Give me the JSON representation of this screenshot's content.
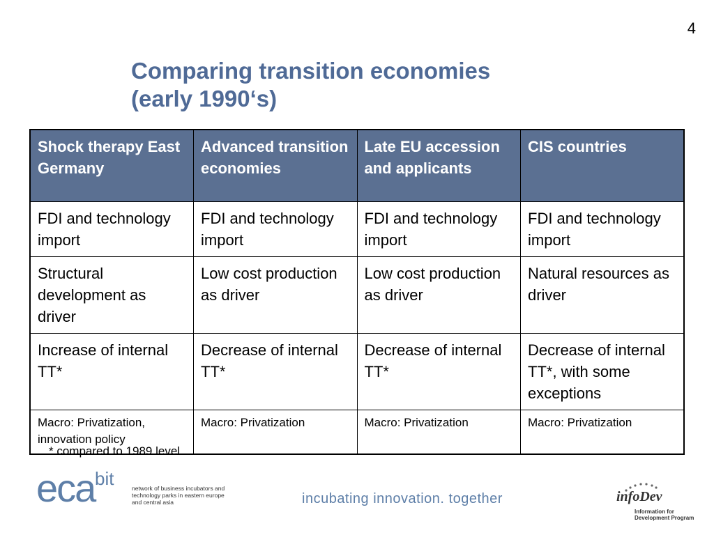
{
  "page_number": "4",
  "title": {
    "line1": "Comparing transition economies",
    "line2": "(early 1990‘s)"
  },
  "table": {
    "headers": [
      "Shock therapy East Germany",
      "Advanced transition economies",
      "Late EU accession and applicants",
      "CIS countries"
    ],
    "rows": [
      [
        "FDI and technology import",
        "FDI and technology import",
        "FDI and technology import",
        "FDI and technology import"
      ],
      [
        "Structural development as driver",
        "Low cost production as driver",
        "Low cost production as driver",
        "Natural resources as driver"
      ],
      [
        "Increase of internal TT*",
        "Decrease of internal TT*",
        "Decrease of internal TT*",
        "Decrease of internal TT*, with some exceptions"
      ],
      [
        "Macro: Privatization, innovation policy",
        "Macro: Privatization",
        "Macro: Privatization",
        "Macro: Privatization"
      ]
    ]
  },
  "footnote": "* compared to 1989 level",
  "footer": {
    "eca_logo": {
      "eca": "eca",
      "bit": "bit",
      "description": "network of business incubators and technology parks in eastern europe and central asia"
    },
    "tagline": "incubating innovation. together",
    "infodev_logo": {
      "name": "infoDev",
      "description": "Information for Development Program"
    }
  },
  "colors": {
    "title": "#4f6a96",
    "header_bg": "#5b7092",
    "logo_blue": "#5e7fa8"
  }
}
